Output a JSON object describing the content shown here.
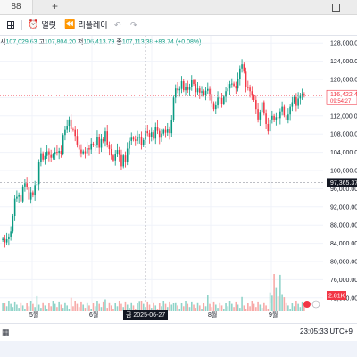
{
  "window": {
    "tab_label": "88",
    "new_tab": "+"
  },
  "toolbar": {
    "layout_icon": "grid-layout-icon",
    "alert_label": "얼럿",
    "replay_label": "리플레이",
    "undo": "↶",
    "redo": "↷"
  },
  "legend": {
    "o_key": "시",
    "o_val": "107,029.63",
    "h_key": "고",
    "h_val": "107,804.20",
    "l_key": "저",
    "l_val": "106,413.79",
    "c_key": "종",
    "c_val": "107,113.38",
    "chg": "+83.74 (+0.08%)"
  },
  "colors": {
    "up": "#089981",
    "down": "#f23645",
    "vol_up": "#8fd3c8",
    "vol_down": "#f7a9a7",
    "grid": "#f0f3fa",
    "axis": "#131722"
  },
  "chart_data": {
    "type": "candlestick",
    "symbol_price_label": "116,422.43",
    "countdown_label": "09:54:27",
    "crosshair_price_label": "97,365.37",
    "crosshair_date_label": "금 2025-06-27",
    "volume_label_1": "2.81K",
    "ylim": [
      70000,
      130000
    ],
    "y_ticks": [
      "128,000.00",
      "124,000.00",
      "120,000.00",
      "116,000.00",
      "112,000.00",
      "108,000.00",
      "104,000.00",
      "100,000.00",
      "96,000.00",
      "92,000.00",
      "88,000.00",
      "84,000.00",
      "80,000.00",
      "76,000.00",
      "72,000.00"
    ],
    "x_ticks": [
      "5월",
      "6월",
      "7월",
      "8월",
      "9월"
    ],
    "closes": [
      85000,
      84200,
      84900,
      85500,
      86600,
      90000,
      93800,
      94200,
      94500,
      93200,
      96500,
      97200,
      96400,
      93600,
      95200,
      94500,
      96800,
      97000,
      101800,
      103800,
      102400,
      103200,
      104200,
      103400,
      102800,
      103500,
      104100,
      103900,
      104300,
      103700,
      107800,
      108900,
      109800,
      111200,
      109100,
      108900,
      107600,
      105700,
      104600,
      103800,
      104200,
      103800,
      104900,
      104600,
      105900,
      105500,
      105600,
      107400,
      105000,
      106900,
      106400,
      108600,
      105700,
      104700,
      103300,
      102200,
      103600,
      104500,
      103400,
      100900,
      103300,
      101800,
      104800,
      106500,
      107200,
      106800,
      106500,
      107300,
      107400,
      105500,
      106700,
      108600,
      108200,
      107300,
      108400,
      107000,
      109600,
      108700,
      107200,
      108100,
      108900,
      108300,
      109000,
      108200,
      111000,
      116000,
      118000,
      117600,
      117900,
      119600,
      117600,
      118300,
      117700,
      118400,
      119800,
      119000,
      117200,
      118000,
      117100,
      117400,
      116600,
      117500,
      117900,
      116800,
      114800,
      113500,
      114300,
      116000,
      115900,
      114700,
      116200,
      117400,
      118000,
      119000,
      119100,
      118600,
      118000,
      120100,
      122400,
      123300,
      121700,
      118300,
      118200,
      117400,
      116400,
      115500,
      113500,
      111200,
      112700,
      115000,
      112500,
      110200,
      108600,
      111200,
      112000,
      111000,
      111700,
      111500,
      113000,
      114000,
      112100,
      111000,
      112300,
      114000,
      115000,
      116100,
      114200,
      115800,
      116400,
      116800,
      116422
    ]
  }
}
